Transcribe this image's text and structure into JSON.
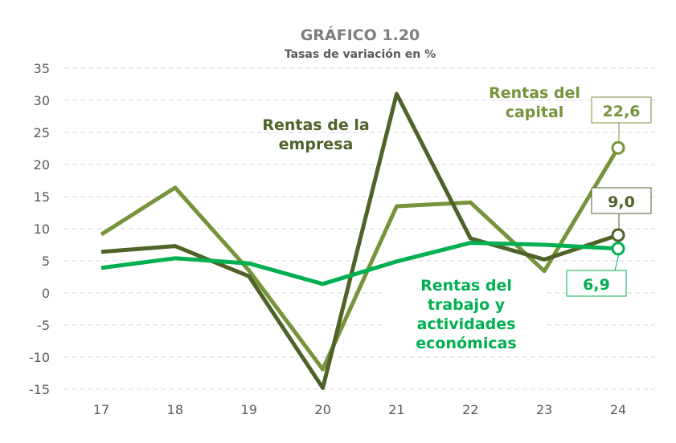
{
  "chart_data": {
    "type": "line",
    "title": "GRÁFICO 1.20",
    "subtitle": "Tasas de variación en %",
    "categories": [
      "17",
      "18",
      "19",
      "20",
      "21",
      "22",
      "23",
      "24"
    ],
    "ylim": [
      -15,
      35
    ],
    "yticks": [
      "35",
      "30",
      "25",
      "20",
      "15",
      "10",
      "5",
      "0",
      "-5",
      "-10",
      "-15"
    ],
    "grid": true,
    "series": [
      {
        "name": "Rentas de la empresa",
        "label_lines": [
          "Rentas de la",
          "empresa"
        ],
        "color": "#4f6228",
        "values": [
          6.4,
          7.3,
          2.6,
          -14.8,
          31.0,
          8.5,
          5.2,
          9.0
        ],
        "end_label": "9,0"
      },
      {
        "name": "Rentas del capital",
        "label_lines": [
          "Rentas del",
          "capital"
        ],
        "color": "#77933c",
        "values": [
          9.1,
          16.4,
          3.5,
          -11.9,
          13.5,
          14.1,
          3.4,
          22.6
        ],
        "end_label": "22,6"
      },
      {
        "name": "Rentas del trabajo y actividades económicas",
        "label_lines": [
          "Rentas del",
          "trabajo y",
          "actividades",
          "económicas"
        ],
        "color": "#00b050",
        "values": [
          3.9,
          5.4,
          4.6,
          1.4,
          4.9,
          7.8,
          7.5,
          6.9
        ],
        "end_label": "6,9"
      }
    ]
  }
}
